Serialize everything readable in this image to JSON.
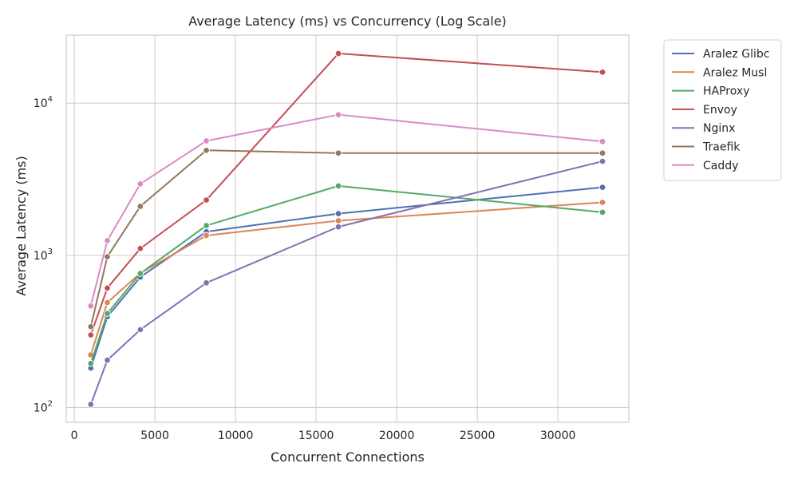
{
  "chart_data": {
    "type": "line",
    "title": "Average Latency (ms) vs Concurrency (Log Scale)",
    "xlabel": "Concurrent Connections",
    "ylabel": "Average Latency (ms)",
    "xlim": [
      -500,
      34400
    ],
    "ylim": [
      80,
      28000
    ],
    "yscale": "log",
    "grid": true,
    "legend_placement": "outside-top-right",
    "x_ticks": [
      0,
      5000,
      10000,
      15000,
      20000,
      25000,
      30000
    ],
    "x_tick_labels": [
      "0",
      "5000",
      "10000",
      "15000",
      "20000",
      "25000",
      "30000"
    ],
    "y_ticks": [
      100,
      1000,
      10000
    ],
    "y_tick_labels": [
      {
        "base": "10",
        "exp": "2"
      },
      {
        "base": "10",
        "exp": "3"
      },
      {
        "base": "10",
        "exp": "4"
      }
    ],
    "x": [
      1024,
      2048,
      4096,
      8192,
      16384,
      32768
    ],
    "series": [
      {
        "name": "Aralez Glibc",
        "color": "#4c72b0",
        "values": [
          182,
          395,
          720,
          1430,
          1880,
          2800
        ]
      },
      {
        "name": "Aralez Musl",
        "color": "#dd8452",
        "values": [
          222,
          490,
          765,
          1350,
          1690,
          2230
        ]
      },
      {
        "name": "HAProxy",
        "color": "#55a868",
        "values": [
          195,
          415,
          760,
          1570,
          2860,
          1920
        ]
      },
      {
        "name": "Envoy",
        "color": "#c44e52",
        "values": [
          300,
          610,
          1110,
          2310,
          21200,
          16000
        ]
      },
      {
        "name": "Nginx",
        "color": "#8172b3",
        "values": [
          105,
          205,
          325,
          660,
          1540,
          4150
        ]
      },
      {
        "name": "Traefik",
        "color": "#937860",
        "values": [
          340,
          980,
          2100,
          4900,
          4700,
          4700
        ]
      },
      {
        "name": "Caddy",
        "color": "#da8bc3",
        "values": [
          465,
          1250,
          2950,
          5650,
          8400,
          5600
        ]
      }
    ]
  }
}
